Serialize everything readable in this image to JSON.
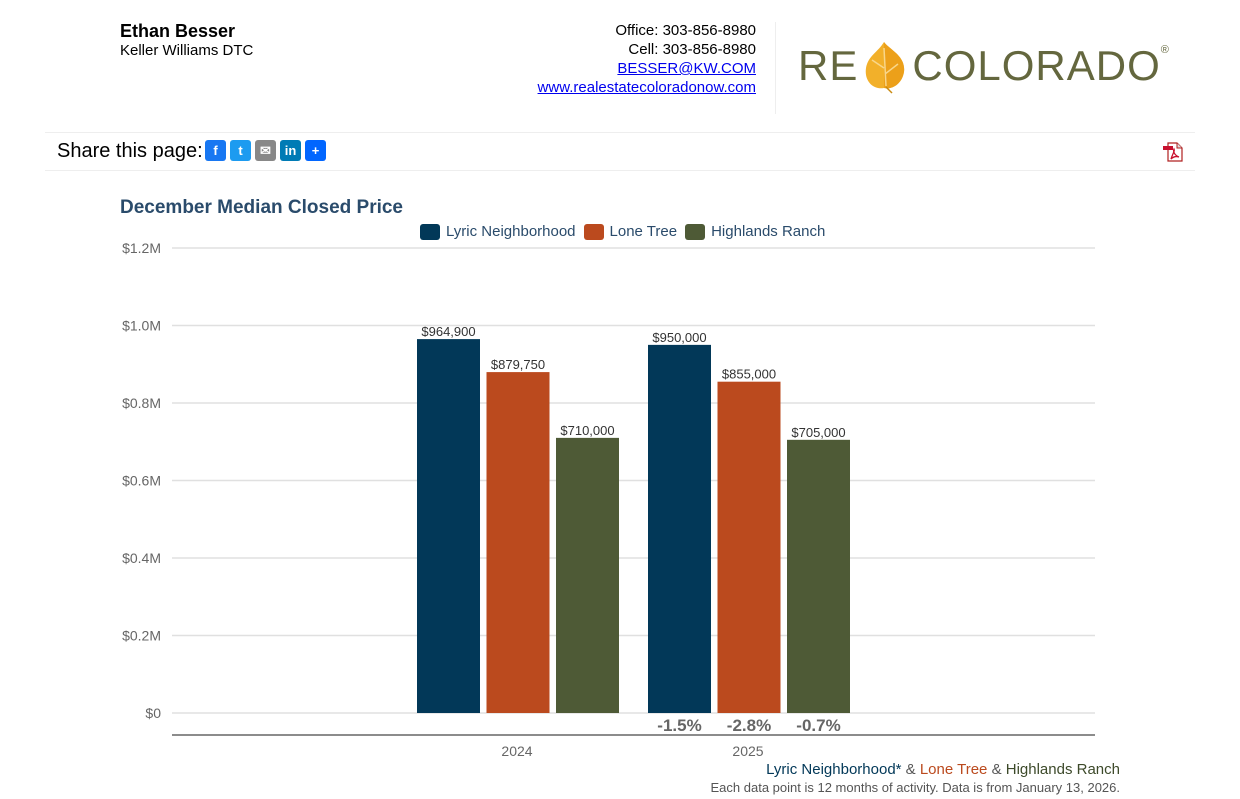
{
  "agent": {
    "name": "Ethan Besser",
    "company": "Keller Williams DTC"
  },
  "contact": {
    "office": "Office: 303-856-8980",
    "cell": "Cell: 303-856-8980",
    "email": "BESSER@KW.COM",
    "website": "www.realestatecoloradonow.com"
  },
  "logo": {
    "left_text": "RE",
    "right_text": "COLORADO",
    "registered": "®"
  },
  "share": {
    "label": "Share this page:",
    "icons": [
      {
        "name": "facebook-icon",
        "glyph": "f",
        "color": "#1877f2"
      },
      {
        "name": "twitter-icon",
        "glyph": "t",
        "color": "#1d9bf0"
      },
      {
        "name": "email-icon",
        "glyph": "✉",
        "color": "#888888"
      },
      {
        "name": "linkedin-icon",
        "glyph": "in",
        "color": "#007bb5"
      },
      {
        "name": "share-plus-icon",
        "glyph": "+",
        "color": "#0166ff"
      }
    ],
    "pdf_icon": "pdf-icon"
  },
  "colors": {
    "lyric": "#023858",
    "lone_tree": "#bb4a1e",
    "highlands": "#4e5a36",
    "title": "#2a4b6b",
    "grid": "#e0e0e0",
    "axis": "#666666"
  },
  "chart_data": {
    "type": "bar",
    "title": "December Median Closed Price",
    "categories": [
      "2024",
      "2025"
    ],
    "series": [
      {
        "name": "Lyric Neighborhood",
        "values": [
          964900,
          950000
        ],
        "labels": [
          "$964,900",
          "$950,000"
        ],
        "color": "#023858"
      },
      {
        "name": "Lone Tree",
        "values": [
          879750,
          855000
        ],
        "labels": [
          "$879,750",
          "$855,000"
        ],
        "color": "#bb4a1e"
      },
      {
        "name": "Highlands Ranch",
        "values": [
          710000,
          705000
        ],
        "labels": [
          "$710,000",
          "$705,000"
        ],
        "color": "#4e5a36"
      }
    ],
    "yticks": [
      "$0",
      "$0.2M",
      "$0.4M",
      "$0.6M",
      "$0.8M",
      "$1.0M",
      "$1.2M"
    ],
    "ylim": [
      0,
      1200000
    ],
    "change_labels": [
      "-1.5%",
      "-2.8%",
      "-0.7%"
    ],
    "xlabel": "",
    "ylabel": "",
    "grid": true,
    "legend_position": "top"
  },
  "footer": {
    "area_lyric": "Lyric Neighborhood*",
    "amp1": " & ",
    "area_lone_tree": "Lone Tree",
    "amp2": " & ",
    "area_highlands": "Highlands Ranch",
    "note": "Each data point is 12 months of activity. Data is from January 13, 2026."
  }
}
